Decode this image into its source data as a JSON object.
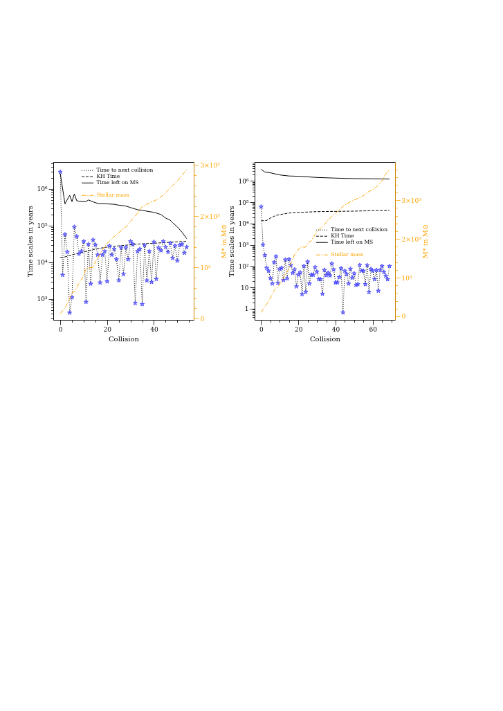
{
  "chart_data": [
    {
      "type": "line",
      "xlabel": "Collision",
      "ylabel": "Time scales in years",
      "y2label": "M* in M⊙",
      "log": "y",
      "legend": "top right",
      "xlim": [
        -3,
        57
      ],
      "xticks": [
        0,
        {
          "value": 5,
          "label": null
        },
        {
          "value": 10,
          "label": null
        },
        {
          "value": 15,
          "label": null
        },
        20,
        {
          "value": 25,
          "label": null
        },
        {
          "value": 30,
          "label": null
        },
        {
          "value": 35,
          "label": null
        },
        40,
        {
          "value": 45,
          "label": null
        },
        {
          "value": 50,
          "label": null
        },
        {
          "value": 55,
          "label": null
        }
      ],
      "ylim": [
        270,
        5400000
      ],
      "yticks": [
        {
          "value": 300,
          "label": null
        },
        {
          "value": 400,
          "label": null
        },
        {
          "value": 500,
          "label": null
        },
        {
          "value": 600,
          "label": null
        },
        {
          "value": 700,
          "label": null
        },
        {
          "value": 800,
          "label": null
        },
        {
          "value": 900,
          "label": null
        },
        {
          "value": 1000,
          "label": "10³"
        },
        {
          "value": 2000,
          "label": null
        },
        {
          "value": 3000,
          "label": null
        },
        {
          "value": 4000,
          "label": null
        },
        {
          "value": 5000,
          "label": null
        },
        {
          "value": 6000,
          "label": null
        },
        {
          "value": 7000,
          "label": null
        },
        {
          "value": 8000,
          "label": null
        },
        {
          "value": 9000,
          "label": null
        },
        {
          "value": 10000,
          "label": "10⁴"
        },
        {
          "value": 20000,
          "label": null
        },
        {
          "value": 30000,
          "label": null
        },
        {
          "value": 40000,
          "label": null
        },
        {
          "value": 50000,
          "label": null
        },
        {
          "value": 60000,
          "label": null
        },
        {
          "value": 70000,
          "label": null
        },
        {
          "value": 80000,
          "label": null
        },
        {
          "value": 90000,
          "label": null
        },
        {
          "value": 100000,
          "label": "10⁵"
        },
        {
          "value": 200000,
          "label": null
        },
        {
          "value": 300000,
          "label": null
        },
        {
          "value": 400000,
          "label": null
        },
        {
          "value": 500000,
          "label": null
        },
        {
          "value": 600000,
          "label": null
        },
        {
          "value": 700000,
          "label": null
        },
        {
          "value": 800000,
          "label": null
        },
        {
          "value": 900000,
          "label": null
        },
        {
          "value": 1000000,
          "label": "10⁶"
        },
        {
          "value": 2000000,
          "label": null
        },
        {
          "value": 3000000,
          "label": null
        },
        {
          "value": 4000000,
          "label": null
        },
        {
          "value": 5000000,
          "label": null
        }
      ],
      "y2lim": [
        -25,
        3060
      ],
      "y2ticks": [
        0,
        {
          "value": 200,
          "label": null
        },
        {
          "value": 400,
          "label": null
        },
        {
          "value": 600,
          "label": null
        },
        {
          "value": 800,
          "label": null
        },
        {
          "value": 1000,
          "label": "10³"
        },
        {
          "value": 1200,
          "label": null
        },
        {
          "value": 1400,
          "label": null
        },
        {
          "value": 1600,
          "label": null
        },
        {
          "value": 1800,
          "label": null
        },
        {
          "value": 2000,
          "label": "2×10³"
        },
        {
          "value": 2200,
          "label": null
        },
        {
          "value": 2400,
          "label": null
        },
        {
          "value": 2600,
          "label": null
        },
        {
          "value": 2800,
          "label": null
        },
        {
          "value": 3000,
          "label": "3×10³"
        }
      ],
      "series": [
        {
          "name": "Time to next collision",
          "line_style": "dotted",
          "color": "#000000",
          "x": [
            0,
            1,
            2,
            3,
            4,
            5,
            6,
            7,
            8,
            9,
            10,
            11,
            12,
            13,
            14,
            15,
            16,
            17,
            18,
            19,
            20,
            21,
            22,
            23,
            24,
            25,
            26,
            27,
            28,
            29,
            30,
            31,
            32,
            33,
            34,
            35,
            36,
            37,
            38,
            39,
            40,
            41,
            42,
            43,
            44,
            45,
            46,
            47,
            48,
            49,
            50,
            51,
            52,
            53,
            54
          ],
          "values": [
            2900000,
            4500,
            57000,
            19000,
            420,
            1100,
            92000,
            50000,
            17000,
            20000,
            37000,
            830,
            31000,
            2600,
            41000,
            30000,
            16000,
            2800,
            16000,
            20000,
            3000,
            28000,
            16000,
            23000,
            12000,
            3200,
            25000,
            4700,
            25000,
            12000,
            37000,
            31000,
            770,
            20000,
            23000,
            720,
            29000,
            3200,
            20000,
            2900,
            36000,
            3500,
            25000,
            21000,
            37000,
            26000,
            19000,
            33000,
            13000,
            28000,
            11000,
            29000,
            31000,
            18000,
            26000
          ]
        },
        {
          "type": "scatter",
          "marker": "star",
          "color": "#3c3cff",
          "x": [
            0,
            1,
            2,
            3,
            4,
            5,
            6,
            7,
            8,
            9,
            10,
            11,
            12,
            13,
            14,
            15,
            16,
            17,
            18,
            19,
            20,
            21,
            22,
            23,
            24,
            25,
            26,
            27,
            28,
            29,
            30,
            31,
            32,
            33,
            34,
            35,
            36,
            37,
            38,
            39,
            40,
            41,
            42,
            43,
            44,
            45,
            46,
            47,
            48,
            49,
            50,
            51,
            52,
            53,
            54
          ],
          "values": [
            2900000,
            4500,
            57000,
            19000,
            420,
            1100,
            92000,
            50000,
            17000,
            20000,
            37000,
            830,
            31000,
            2600,
            41000,
            30000,
            16000,
            2800,
            16000,
            20000,
            3000,
            28000,
            16000,
            23000,
            12000,
            3200,
            25000,
            4700,
            25000,
            12000,
            37000,
            31000,
            770,
            20000,
            23000,
            720,
            29000,
            3200,
            20000,
            2900,
            36000,
            3500,
            25000,
            21000,
            37000,
            26000,
            19000,
            33000,
            13000,
            28000,
            11000,
            29000,
            31000,
            18000,
            26000
          ]
        },
        {
          "name": "KH Time",
          "line_style": "dashed",
          "color": "#000000",
          "x": [
            0,
            2,
            5,
            10,
            15,
            20,
            25,
            30,
            35,
            40,
            45,
            50,
            54
          ],
          "values": [
            13500,
            14000,
            16000,
            19000,
            23000,
            26000,
            28000,
            30000,
            32000,
            33000,
            34500,
            36000,
            37000
          ]
        },
        {
          "name": "Time left on MS",
          "line_style": "solid",
          "color": "#000000",
          "x": [
            0,
            2,
            4,
            5,
            6,
            7,
            8,
            10,
            11,
            12,
            13,
            15,
            17,
            18,
            20,
            23,
            25,
            28,
            30,
            33,
            35,
            38,
            40,
            43,
            45,
            47,
            48,
            50,
            52,
            54
          ],
          "values": [
            2600000,
            390000,
            670000,
            450000,
            730000,
            480000,
            460000,
            450000,
            450000,
            500000,
            470000,
            420000,
            390000,
            400000,
            390000,
            380000,
            360000,
            340000,
            310000,
            270000,
            260000,
            240000,
            230000,
            200000,
            160000,
            140000,
            120000,
            92000,
            66000,
            44000
          ]
        },
        {
          "name": "Stellar mass",
          "line_style": "dashdot",
          "axis": "y2",
          "color": "#ffa500",
          "x": [
            0,
            2,
            4,
            5,
            6,
            8,
            10,
            11,
            12,
            14,
            15,
            18,
            20,
            22,
            25,
            28,
            30,
            33,
            35,
            38,
            40,
            42,
            45,
            48,
            50,
            52,
            54
          ],
          "values": [
            100,
            210,
            390,
            510,
            520,
            690,
            840,
            980,
            990,
            1000,
            1110,
            1340,
            1470,
            1560,
            1680,
            1790,
            1900,
            2060,
            2190,
            2260,
            2300,
            2340,
            2460,
            2600,
            2690,
            2800,
            2910
          ]
        }
      ]
    },
    {
      "type": "line",
      "xlabel": "Collision",
      "ylabel": "Time scales in years",
      "y2label": "M* in M⊙",
      "log": "y",
      "legend": "right",
      "xlim": [
        -3.5,
        72
      ],
      "xticks": [
        0,
        {
          "value": 5,
          "label": null
        },
        {
          "value": 10,
          "label": null
        },
        {
          "value": 15,
          "label": null
        },
        20,
        {
          "value": 25,
          "label": null
        },
        {
          "value": 30,
          "label": null
        },
        {
          "value": 35,
          "label": null
        },
        40,
        {
          "value": 45,
          "label": null
        },
        {
          "value": 50,
          "label": null
        },
        {
          "value": 55,
          "label": null
        },
        60,
        {
          "value": 65,
          "label": null
        },
        {
          "value": 70,
          "label": null
        }
      ],
      "ylim": [
        0.3,
        7700000
      ],
      "yticks": [
        {
          "value": 0.4,
          "label": null
        },
        {
          "value": 0.5,
          "label": null
        },
        {
          "value": 0.6,
          "label": null
        },
        {
          "value": 0.7,
          "label": null
        },
        {
          "value": 0.8,
          "label": null
        },
        {
          "value": 0.9,
          "label": null
        },
        1,
        {
          "value": 2,
          "label": null
        },
        {
          "value": 3,
          "label": null
        },
        {
          "value": 4,
          "label": null
        },
        {
          "value": 5,
          "label": null
        },
        {
          "value": 6,
          "label": null
        },
        {
          "value": 7,
          "label": null
        },
        {
          "value": 8,
          "label": null
        },
        {
          "value": 9,
          "label": null
        },
        10,
        {
          "value": 20,
          "label": null
        },
        {
          "value": 30,
          "label": null
        },
        {
          "value": 40,
          "label": null
        },
        {
          "value": 50,
          "label": null
        },
        {
          "value": 60,
          "label": null
        },
        {
          "value": 70,
          "label": null
        },
        {
          "value": 80,
          "label": null
        },
        {
          "value": 90,
          "label": null
        },
        {
          "value": 100,
          "label": "10²"
        },
        {
          "value": 200,
          "label": null
        },
        {
          "value": 300,
          "label": null
        },
        {
          "value": 400,
          "label": null
        },
        {
          "value": 500,
          "label": null
        },
        {
          "value": 600,
          "label": null
        },
        {
          "value": 700,
          "label": null
        },
        {
          "value": 800,
          "label": null
        },
        {
          "value": 900,
          "label": null
        },
        {
          "value": 1000,
          "label": "10³"
        },
        {
          "value": 2000,
          "label": null
        },
        {
          "value": 3000,
          "label": null
        },
        {
          "value": 4000,
          "label": null
        },
        {
          "value": 5000,
          "label": null
        },
        {
          "value": 6000,
          "label": null
        },
        {
          "value": 7000,
          "label": null
        },
        {
          "value": 8000,
          "label": null
        },
        {
          "value": 9000,
          "label": null
        },
        {
          "value": 10000,
          "label": "10⁴"
        },
        {
          "value": 20000,
          "label": null
        },
        {
          "value": 30000,
          "label": null
        },
        {
          "value": 40000,
          "label": null
        },
        {
          "value": 50000,
          "label": null
        },
        {
          "value": 60000,
          "label": null
        },
        {
          "value": 70000,
          "label": null
        },
        {
          "value": 80000,
          "label": null
        },
        {
          "value": 90000,
          "label": null
        },
        {
          "value": 100000,
          "label": "10⁵"
        },
        {
          "value": 200000,
          "label": null
        },
        {
          "value": 300000,
          "label": null
        },
        {
          "value": 400000,
          "label": null
        },
        {
          "value": 500000,
          "label": null
        },
        {
          "value": 600000,
          "label": null
        },
        {
          "value": 700000,
          "label": null
        },
        {
          "value": 800000,
          "label": null
        },
        {
          "value": 900000,
          "label": null
        },
        {
          "value": 1000000,
          "label": "10⁶"
        },
        {
          "value": 2000000,
          "label": null
        },
        {
          "value": 3000000,
          "label": null
        },
        {
          "value": 4000000,
          "label": null
        },
        {
          "value": 5000000,
          "label": null
        },
        {
          "value": 6000000,
          "label": null
        },
        {
          "value": 7000000,
          "label": null
        }
      ],
      "y2lim": [
        -90,
        3990
      ],
      "y2ticks": [
        0,
        {
          "value": 200,
          "label": null
        },
        {
          "value": 400,
          "label": null
        },
        {
          "value": 600,
          "label": null
        },
        {
          "value": 800,
          "label": null
        },
        {
          "value": 1000,
          "label": "10³"
        },
        {
          "value": 1200,
          "label": null
        },
        {
          "value": 1400,
          "label": null
        },
        {
          "value": 1600,
          "label": null
        },
        {
          "value": 1800,
          "label": null
        },
        {
          "value": 2000,
          "label": "2×10³"
        },
        {
          "value": 2200,
          "label": null
        },
        {
          "value": 2400,
          "label": null
        },
        {
          "value": 2600,
          "label": null
        },
        {
          "value": 2800,
          "label": null
        },
        {
          "value": 3000,
          "label": "3×10³"
        },
        {
          "value": 3200,
          "label": null
        },
        {
          "value": 3400,
          "label": null
        },
        {
          "value": 3600,
          "label": null
        },
        {
          "value": 3800,
          "label": null
        }
      ],
      "series": [
        {
          "name": "Time to next collision",
          "line_style": "dotted",
          "color": "#000000",
          "x": [
            0,
            1,
            2,
            3,
            4,
            5,
            6,
            7,
            8,
            9,
            10,
            11,
            12,
            13,
            14,
            15,
            16,
            17,
            18,
            19,
            20,
            21,
            22,
            23,
            24,
            25,
            26,
            27,
            28,
            29,
            30,
            31,
            32,
            33,
            34,
            35,
            36,
            37,
            38,
            39,
            40,
            41,
            42,
            43,
            44,
            45,
            46,
            47,
            48,
            49,
            50,
            51,
            52,
            53,
            54,
            55,
            56,
            57,
            58,
            59,
            60,
            61,
            62,
            63,
            64,
            65,
            66,
            67,
            68,
            69
          ],
          "values": [
            61000,
            1000,
            320,
            82,
            60,
            27,
            15,
            150,
            280,
            16,
            74,
            82,
            22,
            200,
            26,
            210,
            110,
            48,
            69,
            11,
            39,
            50,
            4.8,
            100,
            6.1,
            160,
            15,
            39,
            39,
            89,
            54,
            24,
            24,
            5,
            66,
            37,
            48,
            36,
            130,
            69,
            17,
            17,
            30,
            78,
            0.66,
            60,
            42,
            15,
            74,
            28,
            45,
            13,
            14,
            110,
            60,
            60,
            14,
            110,
            6,
            72,
            60,
            24,
            65,
            6.9,
            65,
            100,
            52,
            35,
            24,
            100
          ]
        },
        {
          "type": "scatter",
          "marker": "star",
          "color": "#3c3cff",
          "x": [
            0,
            1,
            2,
            3,
            4,
            5,
            6,
            7,
            8,
            9,
            10,
            11,
            12,
            13,
            14,
            15,
            16,
            17,
            18,
            19,
            20,
            21,
            22,
            23,
            24,
            25,
            26,
            27,
            28,
            29,
            30,
            31,
            32,
            33,
            34,
            35,
            36,
            37,
            38,
            39,
            40,
            41,
            42,
            43,
            44,
            45,
            46,
            47,
            48,
            49,
            50,
            51,
            52,
            53,
            54,
            55,
            56,
            57,
            58,
            59,
            60,
            61,
            62,
            63,
            64,
            65,
            66,
            67,
            68,
            69
          ],
          "values": [
            61000,
            1000,
            320,
            82,
            60,
            27,
            15,
            150,
            280,
            16,
            74,
            82,
            22,
            200,
            26,
            210,
            110,
            48,
            69,
            11,
            39,
            50,
            4.8,
            100,
            6.1,
            160,
            15,
            39,
            39,
            89,
            54,
            24,
            24,
            5,
            66,
            37,
            48,
            36,
            130,
            69,
            17,
            17,
            30,
            78,
            0.66,
            60,
            42,
            15,
            74,
            28,
            45,
            13,
            14,
            110,
            60,
            60,
            14,
            110,
            6,
            72,
            60,
            24,
            65,
            6.9,
            65,
            100,
            52,
            35,
            24,
            100
          ]
        },
        {
          "name": "KH Time",
          "line_style": "dashed",
          "color": "#000000",
          "x": [
            0,
            2,
            3,
            5,
            8,
            10,
            15,
            20,
            30,
            40,
            50,
            60,
            69
          ],
          "values": [
            13500,
            13500,
            14000,
            18000,
            24000,
            26000,
            31000,
            33000,
            36000,
            37000,
            38000,
            40000,
            41000
          ]
        },
        {
          "name": "Time left on MS",
          "line_style": "solid",
          "color": "#000000",
          "x": [
            0,
            2,
            5,
            10,
            15,
            20,
            30,
            40,
            50,
            60,
            69
          ],
          "values": [
            3500000,
            2600000,
            2400000,
            1900000,
            1700000,
            1650000,
            1450000,
            1350000,
            1280000,
            1250000,
            1220000
          ]
        },
        {
          "name": "Stellar mass",
          "line_style": "dashdot",
          "axis": "y2",
          "color": "#ffa500",
          "x": [
            0,
            2,
            4,
            6,
            7,
            9,
            11,
            15,
            18,
            21,
            24,
            25,
            27,
            30,
            34,
            36,
            38,
            40,
            42,
            45,
            48,
            50,
            52,
            55,
            57,
            60,
            62,
            65,
            67,
            69
          ],
          "values": [
            100,
            260,
            380,
            580,
            670,
            760,
            910,
            1240,
            1600,
            1790,
            1790,
            1890,
            1960,
            2190,
            2370,
            2490,
            2580,
            2660,
            2760,
            2880,
            2960,
            3010,
            3050,
            3120,
            3200,
            3280,
            3350,
            3500,
            3680,
            3800
          ]
        }
      ]
    }
  ]
}
